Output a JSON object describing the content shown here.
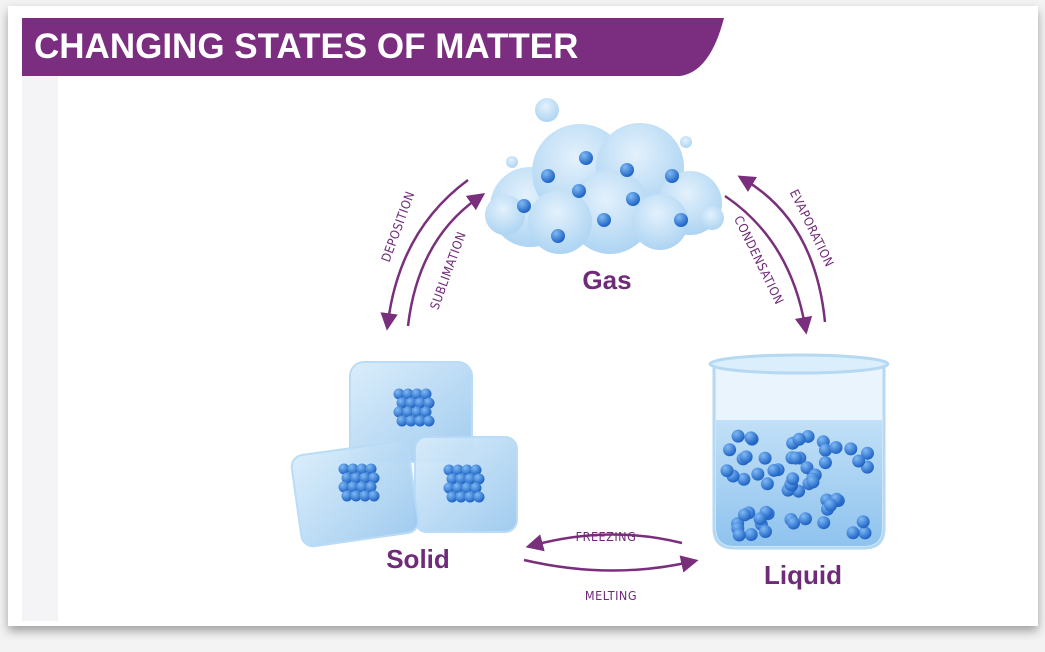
{
  "header": {
    "title": "CHANGING STATES OF MATTER"
  },
  "nodes": [
    {
      "label": "Gas"
    },
    {
      "label": "Solid"
    },
    {
      "label": "Liquid"
    }
  ],
  "transitions": [
    {
      "label": "DEPOSITION"
    },
    {
      "label": "SUBLIMATION"
    },
    {
      "label": "EVAPORATION"
    },
    {
      "label": "CONDENSATION"
    },
    {
      "label": "FREEZING"
    },
    {
      "label": "MELTING"
    }
  ]
}
